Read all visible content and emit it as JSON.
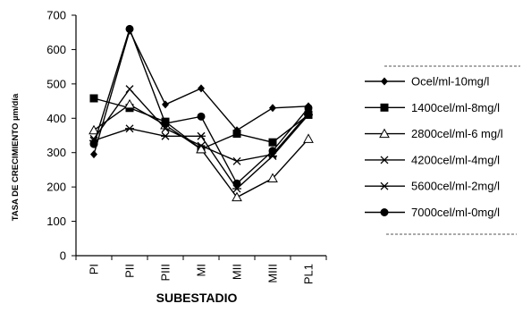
{
  "chart_data": {
    "type": "line",
    "title": "",
    "xlabel": "SUBESTADIO",
    "ylabel": "TASA DE CRECIMIENTO µm/día",
    "categories": [
      "PI",
      "PII",
      "PIII",
      "MI",
      "MII",
      "MIII",
      "PL1"
    ],
    "ylim": [
      0,
      700
    ],
    "yticks": [
      0,
      100,
      200,
      300,
      400,
      500,
      600,
      700
    ],
    "grid": false,
    "legend_position": "right",
    "series": [
      {
        "name": "Ocel/ml-10mg/l",
        "marker": "diamond",
        "values": [
          295,
          655,
          440,
          487,
          365,
          430,
          435
        ]
      },
      {
        "name": "1400cel/ml-8mg/l",
        "marker": "square",
        "values": [
          458,
          430,
          390,
          310,
          355,
          330,
          410
        ]
      },
      {
        "name": "2800cel/ml-6 mg/l",
        "marker": "triangle",
        "values": [
          365,
          440,
          380,
          310,
          170,
          225,
          340
        ]
      },
      {
        "name": "4200cel/ml-4mg/l",
        "marker": "x",
        "values": [
          340,
          485,
          370,
          320,
          275,
          295,
          415
        ]
      },
      {
        "name": "5600cel/ml-2mg/l",
        "marker": "star",
        "values": [
          335,
          370,
          348,
          348,
          195,
          290,
          410
        ]
      },
      {
        "name": "7000cel/ml-0mg/l",
        "marker": "circle",
        "values": [
          325,
          660,
          385,
          405,
          210,
          305,
          430
        ]
      }
    ]
  }
}
